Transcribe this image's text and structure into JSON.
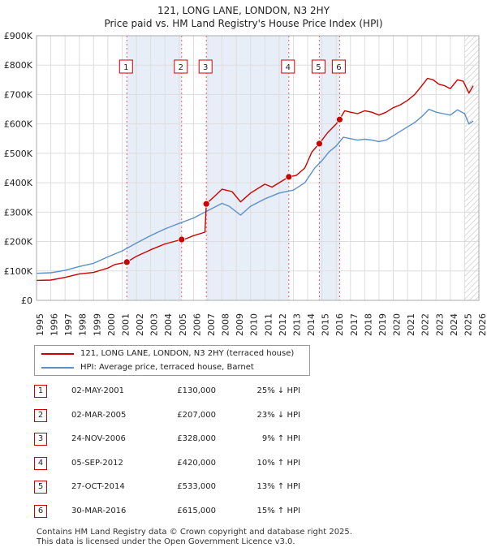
{
  "chart_data": {
    "type": "line",
    "title": "121, LONG LANE, LONDON, N3 2HY",
    "subtitle": "Price paid vs. HM Land Registry's House Price Index (HPI)",
    "ylim": [
      0,
      900000
    ],
    "xlim": [
      1995,
      2026
    ],
    "y_ticks": [
      {
        "value": 0,
        "label": "£0"
      },
      {
        "value": 100000,
        "label": "£100K"
      },
      {
        "value": 200000,
        "label": "£200K"
      },
      {
        "value": 300000,
        "label": "£300K"
      },
      {
        "value": 400000,
        "label": "£400K"
      },
      {
        "value": 500000,
        "label": "£500K"
      },
      {
        "value": 600000,
        "label": "£600K"
      },
      {
        "value": 700000,
        "label": "£700K"
      },
      {
        "value": 800000,
        "label": "£800K"
      },
      {
        "value": 900000,
        "label": "£900K"
      }
    ],
    "x_ticks": [
      "1995",
      "1996",
      "1997",
      "1998",
      "1999",
      "2000",
      "2001",
      "2002",
      "2003",
      "2004",
      "2005",
      "2006",
      "2007",
      "2008",
      "2009",
      "2010",
      "2011",
      "2012",
      "2013",
      "2014",
      "2015",
      "2016",
      "2017",
      "2018",
      "2019",
      "2020",
      "2021",
      "2022",
      "2023",
      "2024",
      "2025",
      "2026"
    ],
    "series": [
      {
        "name": "121, LONG LANE, LONDON, N3 2HY (terraced house)",
        "color": "#cc0000",
        "points": [
          [
            1995.0,
            68000
          ],
          [
            1996.0,
            69000
          ],
          [
            1997.0,
            78000
          ],
          [
            1998.0,
            90000
          ],
          [
            1999.0,
            95000
          ],
          [
            2000.0,
            110000
          ],
          [
            2000.5,
            122000
          ],
          [
            2001.33,
            130000
          ],
          [
            2002.0,
            150000
          ],
          [
            2003.0,
            172000
          ],
          [
            2004.0,
            192000
          ],
          [
            2005.17,
            207000
          ],
          [
            2005.5,
            210000
          ],
          [
            2006.0,
            220000
          ],
          [
            2006.8,
            232000
          ],
          [
            2006.9,
            328000
          ],
          [
            2007.5,
            355000
          ],
          [
            2008.0,
            378000
          ],
          [
            2008.7,
            370000
          ],
          [
            2009.3,
            335000
          ],
          [
            2010.0,
            365000
          ],
          [
            2011.0,
            395000
          ],
          [
            2011.5,
            385000
          ],
          [
            2012.0,
            400000
          ],
          [
            2012.68,
            420000
          ],
          [
            2013.2,
            425000
          ],
          [
            2013.8,
            450000
          ],
          [
            2014.3,
            505000
          ],
          [
            2014.82,
            533000
          ],
          [
            2015.4,
            570000
          ],
          [
            2016.0,
            600000
          ],
          [
            2016.24,
            615000
          ],
          [
            2016.6,
            645000
          ],
          [
            2017.0,
            640000
          ],
          [
            2017.5,
            635000
          ],
          [
            2018.0,
            645000
          ],
          [
            2018.5,
            640000
          ],
          [
            2019.0,
            630000
          ],
          [
            2019.5,
            640000
          ],
          [
            2020.0,
            655000
          ],
          [
            2020.5,
            665000
          ],
          [
            2021.0,
            680000
          ],
          [
            2021.5,
            700000
          ],
          [
            2022.0,
            730000
          ],
          [
            2022.4,
            755000
          ],
          [
            2022.8,
            750000
          ],
          [
            2023.2,
            735000
          ],
          [
            2023.6,
            730000
          ],
          [
            2024.0,
            720000
          ],
          [
            2024.5,
            750000
          ],
          [
            2024.9,
            745000
          ],
          [
            2025.3,
            705000
          ],
          [
            2025.6,
            730000
          ]
        ]
      },
      {
        "name": "HPI: Average price, terraced house, Barnet",
        "color": "#5b8fc9",
        "points": [
          [
            1995.0,
            92000
          ],
          [
            1996.0,
            94000
          ],
          [
            1997.0,
            102000
          ],
          [
            1998.0,
            115000
          ],
          [
            1999.0,
            126000
          ],
          [
            2000.0,
            148000
          ],
          [
            2001.0,
            168000
          ],
          [
            2002.0,
            195000
          ],
          [
            2003.0,
            220000
          ],
          [
            2004.0,
            243000
          ],
          [
            2005.0,
            262000
          ],
          [
            2006.0,
            280000
          ],
          [
            2007.0,
            305000
          ],
          [
            2008.0,
            330000
          ],
          [
            2008.5,
            320000
          ],
          [
            2009.3,
            290000
          ],
          [
            2010.0,
            320000
          ],
          [
            2011.0,
            345000
          ],
          [
            2012.0,
            365000
          ],
          [
            2013.0,
            375000
          ],
          [
            2013.8,
            400000
          ],
          [
            2014.5,
            450000
          ],
          [
            2015.0,
            475000
          ],
          [
            2015.5,
            505000
          ],
          [
            2016.0,
            525000
          ],
          [
            2016.5,
            555000
          ],
          [
            2017.0,
            550000
          ],
          [
            2017.5,
            545000
          ],
          [
            2018.0,
            548000
          ],
          [
            2018.5,
            545000
          ],
          [
            2019.0,
            540000
          ],
          [
            2019.5,
            545000
          ],
          [
            2020.0,
            560000
          ],
          [
            2020.5,
            575000
          ],
          [
            2021.0,
            590000
          ],
          [
            2021.5,
            605000
          ],
          [
            2022.0,
            625000
          ],
          [
            2022.5,
            650000
          ],
          [
            2023.0,
            640000
          ],
          [
            2023.5,
            635000
          ],
          [
            2024.0,
            630000
          ],
          [
            2024.5,
            648000
          ],
          [
            2025.0,
            635000
          ],
          [
            2025.3,
            600000
          ],
          [
            2025.6,
            610000
          ]
        ]
      }
    ],
    "sales": [
      {
        "num": "1",
        "x": 2001.33,
        "price": 130000
      },
      {
        "num": "2",
        "x": 2005.17,
        "price": 207000
      },
      {
        "num": "3",
        "x": 2006.9,
        "price": 328000
      },
      {
        "num": "4",
        "x": 2012.68,
        "price": 420000
      },
      {
        "num": "5",
        "x": 2014.82,
        "price": 533000
      },
      {
        "num": "6",
        "x": 2016.24,
        "price": 615000
      }
    ],
    "shaded_ranges": [
      [
        2001.33,
        2005.17
      ],
      [
        2006.9,
        2012.68
      ],
      [
        2014.82,
        2016.24
      ]
    ],
    "hatched_from": 2025.0
  },
  "legend": {
    "property": "121, LONG LANE, LONDON, N3 2HY (terraced house)",
    "hpi": "HPI: Average price, terraced house, Barnet",
    "property_color": "#cc0000",
    "hpi_color": "#5b8fc9"
  },
  "table": [
    {
      "num": "1",
      "date": "02-MAY-2001",
      "price": "£130,000",
      "hpi": "25% ↓ HPI"
    },
    {
      "num": "2",
      "date": "02-MAR-2005",
      "price": "£207,000",
      "hpi": "23% ↓ HPI"
    },
    {
      "num": "3",
      "date": "24-NOV-2006",
      "price": "£328,000",
      "hpi": "9% ↑ HPI"
    },
    {
      "num": "4",
      "date": "05-SEP-2012",
      "price": "£420,000",
      "hpi": "10% ↑ HPI"
    },
    {
      "num": "5",
      "date": "27-OCT-2014",
      "price": "£533,000",
      "hpi": "13% ↑ HPI"
    },
    {
      "num": "6",
      "date": "30-MAR-2016",
      "price": "£615,000",
      "hpi": "15% ↑ HPI"
    }
  ],
  "footer": {
    "line1": "Contains HM Land Registry data © Crown copyright and database right 2025.",
    "line2": "This data is licensed under the Open Government Licence v3.0."
  }
}
